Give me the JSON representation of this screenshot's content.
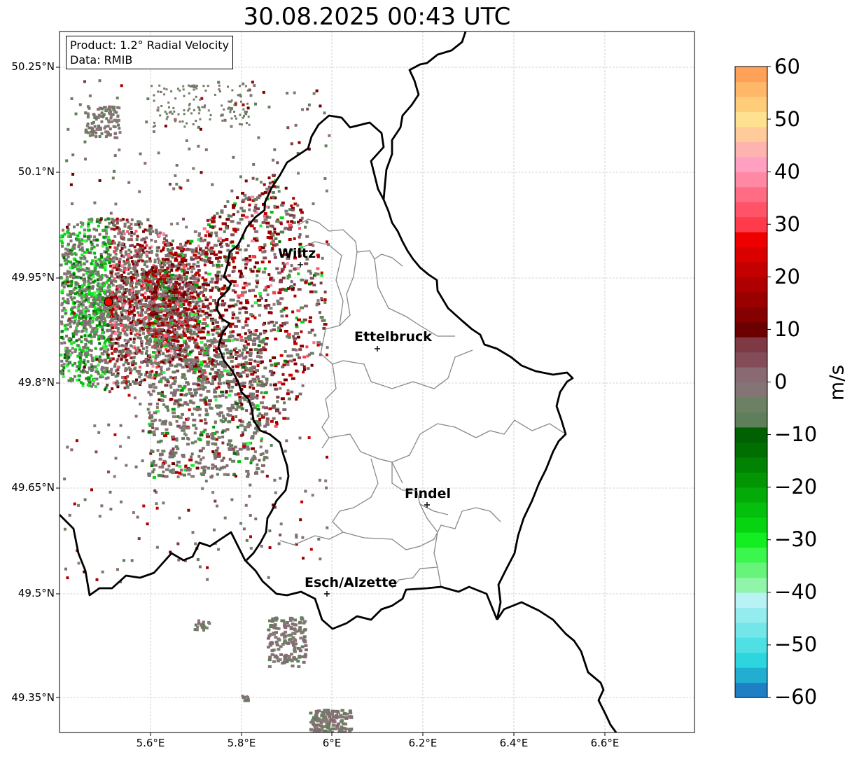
{
  "title": "30.08.2025 00:43 UTC",
  "info": {
    "product": "Product: 1.2° Radial Velocity",
    "data_source": "Data: RMIB"
  },
  "axes": {
    "lon_ticks": [
      "5.6°E",
      "5.8°E",
      "6°E",
      "6.2°E",
      "6.4°E",
      "6.6°E"
    ],
    "lat_ticks": [
      "50.25°N",
      "50.1°N",
      "49.95°N",
      "49.8°N",
      "49.65°N",
      "49.5°N",
      "49.35°N"
    ],
    "gridlines": true
  },
  "cities": [
    {
      "name": "Wiltz"
    },
    {
      "name": "Ettelbruck"
    },
    {
      "name": "Findel"
    },
    {
      "name": "Esch/Alzette"
    }
  ],
  "colorbar": {
    "label": "m/s",
    "min": -60,
    "max": 60,
    "ticks": [
      "60",
      "50",
      "40",
      "30",
      "20",
      "10",
      "0",
      "−10",
      "−20",
      "−30",
      "−40",
      "−50",
      "−60"
    ],
    "colors": [
      "#1f7fc4",
      "#22aed0",
      "#2dd6df",
      "#4fe0e3",
      "#72e6e8",
      "#95ecee",
      "#b8f2f4",
      "#90f5a8",
      "#66f57a",
      "#3bf64c",
      "#13ee22",
      "#06d411",
      "#04bf0c",
      "#03aa08",
      "#029605",
      "#018203",
      "#016e02",
      "#016001",
      "#5f7f5b",
      "#6c8063",
      "#837575",
      "#8a6a72",
      "#844c57",
      "#7d3a45",
      "#6c0000",
      "#850000",
      "#9b0000",
      "#ae0000",
      "#c40000",
      "#db0000",
      "#ef0000",
      "#ff3b4b",
      "#ff5468",
      "#ff6c83",
      "#ff89a5",
      "#ff9fc2",
      "#ffb3b0",
      "#ffcc99",
      "#ffe28f",
      "#ffcc7a",
      "#ffb76a",
      "#ffa258"
    ]
  },
  "radar_site": {
    "marker_color": "#ff0000"
  }
}
